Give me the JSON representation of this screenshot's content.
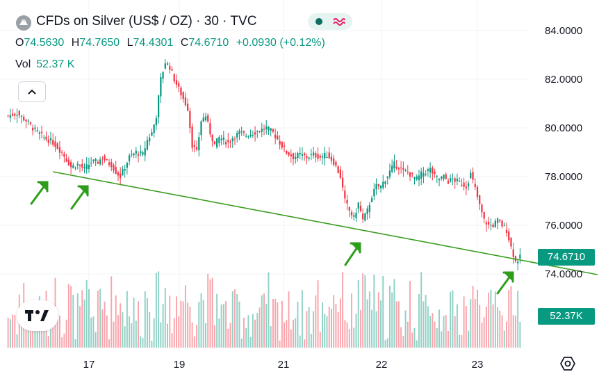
{
  "header": {
    "title": "CFDs on Silver (US$ / OZ) · 30 · TVC",
    "ohlc": [
      {
        "label": "O",
        "value": "74.5630"
      },
      {
        "label": "H",
        "value": "74.7650"
      },
      {
        "label": "L",
        "value": "74.4301"
      },
      {
        "label": "C",
        "value": "74.6710"
      }
    ],
    "change": "+0.0930 (+0.12%)",
    "vol_label": "Vol",
    "vol_value": "52.37 K"
  },
  "price_tag": "74.6710",
  "volume_tag": "52.37K",
  "colors": {
    "up": "#089981",
    "down": "#f23645",
    "trendline": "#3a9d1f",
    "arrow": "#2e9e1a",
    "accent": "#089981"
  },
  "icons": [
    "silver-symbol-icon",
    "status-dot-icon",
    "wave-icon",
    "chevron-up-icon",
    "tradingview-logo-icon",
    "settings-hexagon-icon"
  ],
  "chart_data": {
    "type": "candlestick",
    "x_ticks": [
      "17",
      "19",
      "21",
      "22",
      "23"
    ],
    "y_ticks": [
      "84.0000",
      "82.0000",
      "80.0000",
      "78.0000",
      "76.0000",
      "74.0000"
    ],
    "ylim": [
      73.0,
      84.8
    ],
    "close_path": [
      [
        0,
        80.5
      ],
      [
        4,
        80.6
      ],
      [
        8,
        80.3
      ],
      [
        12,
        79.9
      ],
      [
        16,
        79.6
      ],
      [
        20,
        79.4
      ],
      [
        24,
        79.0
      ],
      [
        26,
        78.7
      ],
      [
        28,
        78.4
      ],
      [
        31,
        78.5
      ],
      [
        34,
        78.3
      ],
      [
        37,
        78.6
      ],
      [
        40,
        78.6
      ],
      [
        42,
        78.8
      ],
      [
        44,
        78.6
      ],
      [
        46,
        78.5
      ],
      [
        48,
        78.2
      ],
      [
        50,
        78.0
      ],
      [
        52,
        78.4
      ],
      [
        54,
        78.8
      ],
      [
        57,
        79.0
      ],
      [
        60,
        78.9
      ],
      [
        62,
        79.5
      ],
      [
        64,
        79.8
      ],
      [
        66,
        80.5
      ],
      [
        68,
        82.0
      ],
      [
        70,
        82.7
      ],
      [
        72,
        82.5
      ],
      [
        74,
        82.0
      ],
      [
        76,
        81.6
      ],
      [
        78,
        81.2
      ],
      [
        80,
        80.8
      ],
      [
        82,
        79.3
      ],
      [
        84,
        79.0
      ],
      [
        86,
        80.3
      ],
      [
        88,
        80.5
      ],
      [
        90,
        79.8
      ],
      [
        92,
        79.3
      ],
      [
        94,
        79.6
      ],
      [
        96,
        79.5
      ],
      [
        98,
        79.4
      ],
      [
        100,
        79.6
      ],
      [
        103,
        79.8
      ],
      [
        106,
        79.7
      ],
      [
        109,
        79.8
      ],
      [
        112,
        79.9
      ],
      [
        115,
        80.0
      ],
      [
        118,
        79.8
      ],
      [
        121,
        79.4
      ],
      [
        124,
        79.0
      ],
      [
        127,
        78.8
      ],
      [
        130,
        78.9
      ],
      [
        133,
        78.8
      ],
      [
        136,
        78.9
      ],
      [
        139,
        78.8
      ],
      [
        142,
        78.9
      ],
      [
        145,
        78.6
      ],
      [
        148,
        78.0
      ],
      [
        150,
        77.0
      ],
      [
        152,
        76.6
      ],
      [
        154,
        76.3
      ],
      [
        156,
        76.9
      ],
      [
        158,
        76.2
      ],
      [
        160,
        76.6
      ],
      [
        162,
        77.2
      ],
      [
        164,
        77.6
      ],
      [
        166,
        77.6
      ],
      [
        168,
        77.9
      ],
      [
        170,
        78.2
      ],
      [
        172,
        78.5
      ],
      [
        174,
        78.4
      ],
      [
        176,
        78.2
      ],
      [
        178,
        78.2
      ],
      [
        180,
        78.0
      ],
      [
        182,
        77.9
      ],
      [
        184,
        78.1
      ],
      [
        186,
        78.2
      ],
      [
        188,
        78.3
      ],
      [
        190,
        78.0
      ],
      [
        192,
        77.9
      ],
      [
        194,
        78.0
      ],
      [
        196,
        77.8
      ],
      [
        198,
        77.9
      ],
      [
        200,
        77.8
      ],
      [
        202,
        77.7
      ],
      [
        204,
        77.6
      ],
      [
        206,
        78.1
      ],
      [
        208,
        77.5
      ],
      [
        210,
        76.8
      ],
      [
        212,
        76.2
      ],
      [
        214,
        76.0
      ],
      [
        216,
        76.0
      ],
      [
        218,
        76.2
      ],
      [
        220,
        76.0
      ],
      [
        222,
        75.8
      ],
      [
        224,
        75.1
      ],
      [
        226,
        74.5
      ],
      [
        228,
        74.67
      ]
    ]
  }
}
